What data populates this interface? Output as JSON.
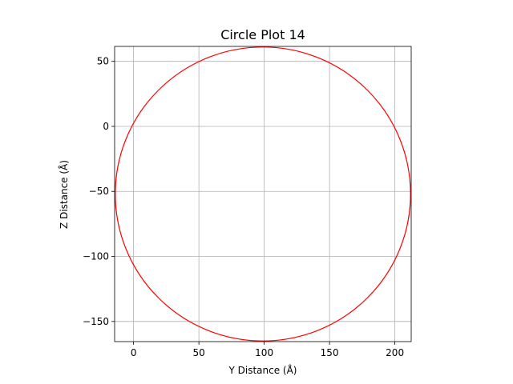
{
  "chart_data": {
    "type": "line",
    "title": "Circle Plot 14",
    "xlabel": "Y Distance (Å)",
    "ylabel": "Z Distance (Å)",
    "circle": {
      "center_x": 99,
      "center_y": -52,
      "radius": 113,
      "color": "#ff0000"
    },
    "xlim": [
      -14.5,
      212.5
    ],
    "ylim": [
      -165.5,
      61.5
    ],
    "xticks": [
      0,
      50,
      100,
      150,
      200
    ],
    "xtick_labels": [
      "0",
      "50",
      "100",
      "150",
      "200"
    ],
    "yticks": [
      50,
      0,
      -50,
      -100,
      -150
    ],
    "ytick_labels": [
      "50",
      "0",
      "−50",
      "−100",
      "−150"
    ],
    "grid": true
  }
}
